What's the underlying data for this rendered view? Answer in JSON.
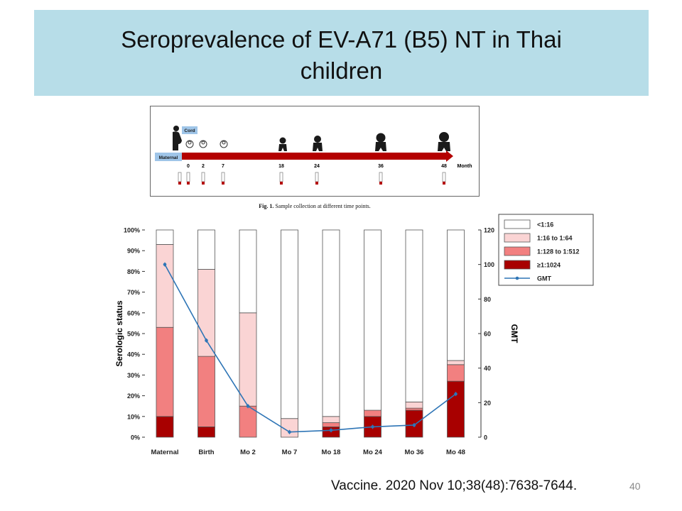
{
  "slide": {
    "title": "Seroprevalence of EV-A71 (B5) NT in Thai children",
    "citation": "Vaccine. 2020 Nov 10;38(48):7638-7644.",
    "slide_number": "40"
  },
  "figure1": {
    "caption_label": "Fig. 1.",
    "caption_text": "Sample collection at different time points.",
    "cord_label": "Cord",
    "maternal_label": "Maternal",
    "month_label": "Month",
    "timepoints": [
      "0",
      "2",
      "7",
      "18",
      "24",
      "36",
      "48"
    ]
  },
  "chart_data": {
    "type": "bar",
    "stacked": true,
    "categories": [
      "Maternal",
      "Birth",
      "Mo 2",
      "Mo 7",
      "Mo 18",
      "Mo 24",
      "Mo 36",
      "Mo 48"
    ],
    "ylabel": "Serologic status",
    "y2label": "GMT",
    "ylim": [
      0,
      100
    ],
    "y2lim": [
      0,
      120
    ],
    "yticks": [
      "0%",
      "10%",
      "20%",
      "30%",
      "40%",
      "50%",
      "60%",
      "70%",
      "80%",
      "90%",
      "100%"
    ],
    "y2ticks": [
      "0",
      "20",
      "40",
      "60",
      "80",
      "100",
      "120"
    ],
    "legend_position": "top-right",
    "series": [
      {
        "name": "≥1:1024",
        "color": "#a80000",
        "values": [
          10,
          5,
          0,
          0,
          5,
          10,
          13,
          27
        ]
      },
      {
        "name": "1:128 to 1:512",
        "color": "#f28080",
        "values": [
          43,
          34,
          15,
          0,
          2,
          3,
          1,
          8
        ]
      },
      {
        "name": "1:16 to 1:64",
        "color": "#fad4d4",
        "values": [
          40,
          42,
          45,
          9,
          3,
          0,
          3,
          2
        ]
      },
      {
        "name": "<1:16",
        "color": "#ffffff",
        "values": [
          7,
          19,
          40,
          91,
          90,
          87,
          83,
          63
        ]
      }
    ],
    "line": {
      "name": "GMT",
      "color": "#2e75b6",
      "values": [
        100,
        56,
        18,
        3,
        4,
        6,
        7,
        25
      ]
    },
    "legend_order": [
      "<1:16",
      "1:16 to 1:64",
      "1:128 to 1:512",
      "≥1:1024",
      "GMT"
    ]
  }
}
